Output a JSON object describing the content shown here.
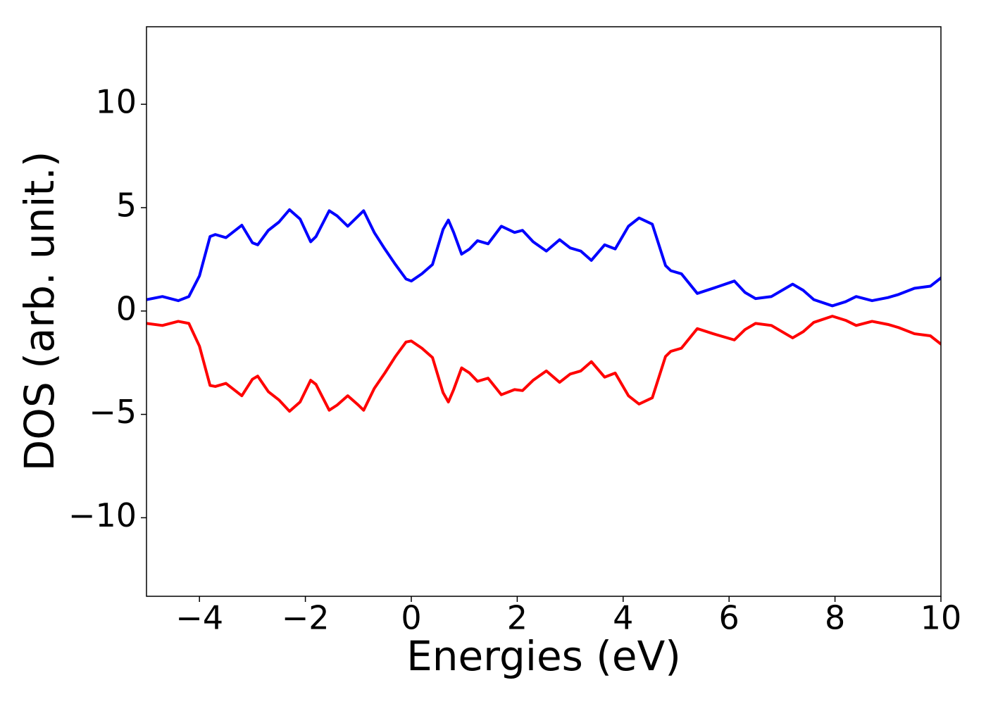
{
  "chart_data": {
    "type": "line",
    "x_label": "Energies (eV)",
    "y_label": "DOS (arb. unit.)",
    "x": [
      -5,
      -4.7,
      -4.4,
      -4.2,
      -4.0,
      -3.8,
      -3.7,
      -3.5,
      -3.2,
      -3.0,
      -2.9,
      -2.7,
      -2.5,
      -2.3,
      -2.1,
      -1.9,
      -1.8,
      -1.55,
      -1.4,
      -1.2,
      -1.0,
      -0.9,
      -0.7,
      -0.5,
      -0.3,
      -0.1,
      0,
      0.2,
      0.4,
      0.6,
      0.7,
      0.8,
      0.95,
      1.1,
      1.25,
      1.45,
      1.7,
      1.95,
      2.1,
      2.3,
      2.55,
      2.8,
      3.0,
      3.2,
      3.4,
      3.65,
      3.85,
      4.1,
      4.3,
      4.55,
      4.8,
      4.9,
      5.1,
      5.4,
      5.7,
      6.1,
      6.3,
      6.5,
      6.8,
      7.2,
      7.4,
      7.6,
      7.95,
      8.2,
      8.4,
      8.7,
      9.0,
      9.2,
      9.5,
      9.8,
      10
    ],
    "series": [
      {
        "color": "#0000ff",
        "values": [
          0.55,
          0.7,
          0.5,
          0.7,
          1.7,
          3.6,
          3.7,
          3.55,
          4.15,
          3.3,
          3.2,
          3.9,
          4.3,
          4.9,
          4.45,
          3.35,
          3.6,
          4.85,
          4.6,
          4.1,
          4.6,
          4.85,
          3.8,
          3.0,
          2.25,
          1.55,
          1.45,
          1.8,
          2.25,
          3.95,
          4.4,
          3.8,
          2.75,
          3.0,
          3.4,
          3.25,
          4.1,
          3.8,
          3.9,
          3.35,
          2.9,
          3.45,
          3.05,
          2.9,
          2.45,
          3.2,
          3.0,
          4.1,
          4.5,
          4.2,
          2.2,
          1.95,
          1.8,
          0.85,
          1.1,
          1.45,
          0.9,
          0.6,
          0.7,
          1.3,
          1.0,
          0.55,
          0.25,
          0.45,
          0.7,
          0.5,
          0.65,
          0.8,
          1.1,
          1.2,
          1.6
        ]
      },
      {
        "color": "#ff0000",
        "values": [
          -0.6,
          -0.7,
          -0.5,
          -0.6,
          -1.7,
          -3.6,
          -3.65,
          -3.5,
          -4.1,
          -3.3,
          -3.15,
          -3.9,
          -4.3,
          -4.85,
          -4.4,
          -3.35,
          -3.55,
          -4.8,
          -4.55,
          -4.1,
          -4.55,
          -4.8,
          -3.75,
          -3.0,
          -2.2,
          -1.5,
          -1.45,
          -1.8,
          -2.25,
          -3.95,
          -4.4,
          -3.8,
          -2.75,
          -3.0,
          -3.4,
          -3.25,
          -4.05,
          -3.8,
          -3.85,
          -3.35,
          -2.9,
          -3.45,
          -3.05,
          -2.9,
          -2.45,
          -3.2,
          -3.0,
          -4.1,
          -4.5,
          -4.2,
          -2.2,
          -1.95,
          -1.8,
          -0.85,
          -1.1,
          -1.4,
          -0.9,
          -0.6,
          -0.7,
          -1.3,
          -1.0,
          -0.55,
          -0.25,
          -0.45,
          -0.7,
          -0.5,
          -0.65,
          -0.8,
          -1.1,
          -1.2,
          -1.6
        ]
      }
    ],
    "xlim": [
      -5,
      10
    ],
    "ylim": [
      -13.8,
      13.75
    ],
    "xticks": [
      {
        "value": -4,
        "label": "−4"
      },
      {
        "value": -2,
        "label": "−2"
      },
      0,
      2,
      4,
      6,
      8,
      10
    ],
    "yticks": [
      {
        "value": -10,
        "label": "−10"
      },
      {
        "value": -5,
        "label": "−5"
      },
      0,
      5,
      10
    ],
    "grid": false
  }
}
